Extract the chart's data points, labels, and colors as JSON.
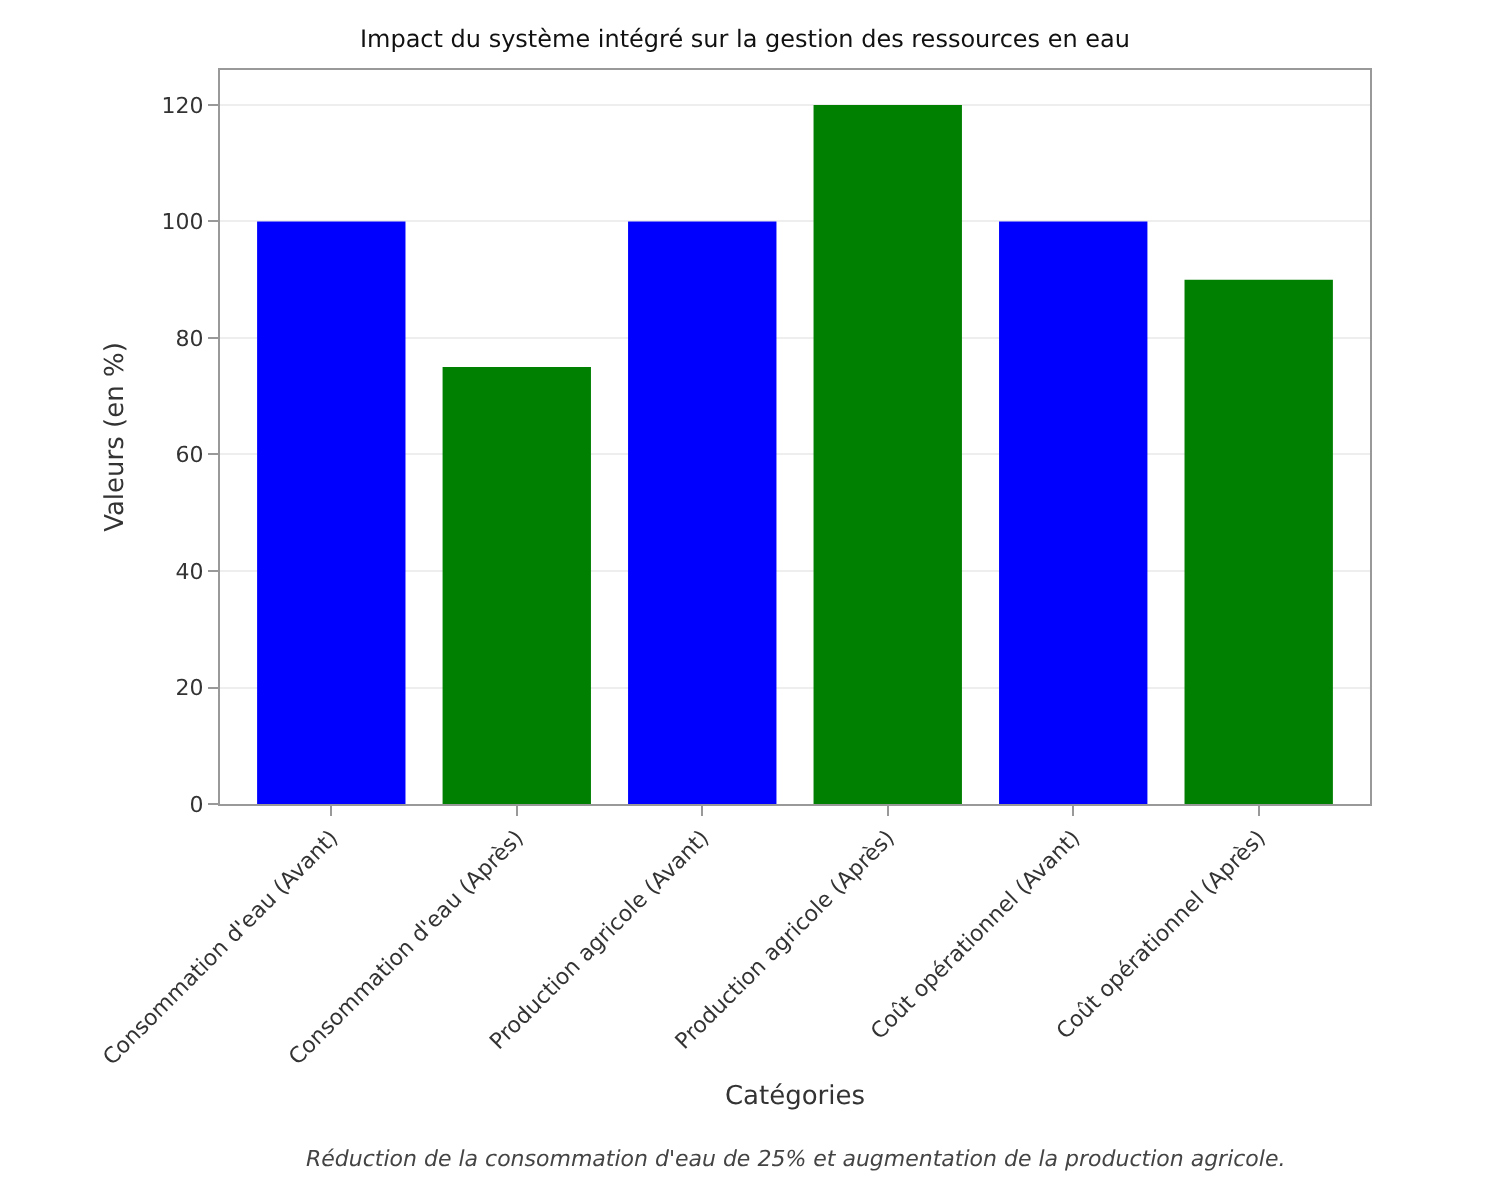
{
  "chart_data": {
    "type": "bar",
    "title": "Impact du système intégré sur la gestion des ressources en eau",
    "xlabel": "Catégories",
    "ylabel": "Valeurs (en %)",
    "categories": [
      "Consommation d'eau (Avant)",
      "Consommation d'eau (Après)",
      "Production agricole (Avant)",
      "Production agricole (Après)",
      "Coût opérationnel (Avant)",
      "Coût opérationnel (Après)"
    ],
    "values": [
      100,
      75,
      100,
      120,
      100,
      90
    ],
    "colors": [
      "#0000ff",
      "#008000",
      "#0000ff",
      "#008000",
      "#0000ff",
      "#008000"
    ],
    "ylim": [
      0,
      126
    ],
    "yticks": [
      0,
      20,
      40,
      60,
      80,
      100,
      120
    ],
    "grid": "y",
    "annotations": [
      "Réduction de la consommation d'eau de 25% et augmentation de la production agricole."
    ]
  }
}
